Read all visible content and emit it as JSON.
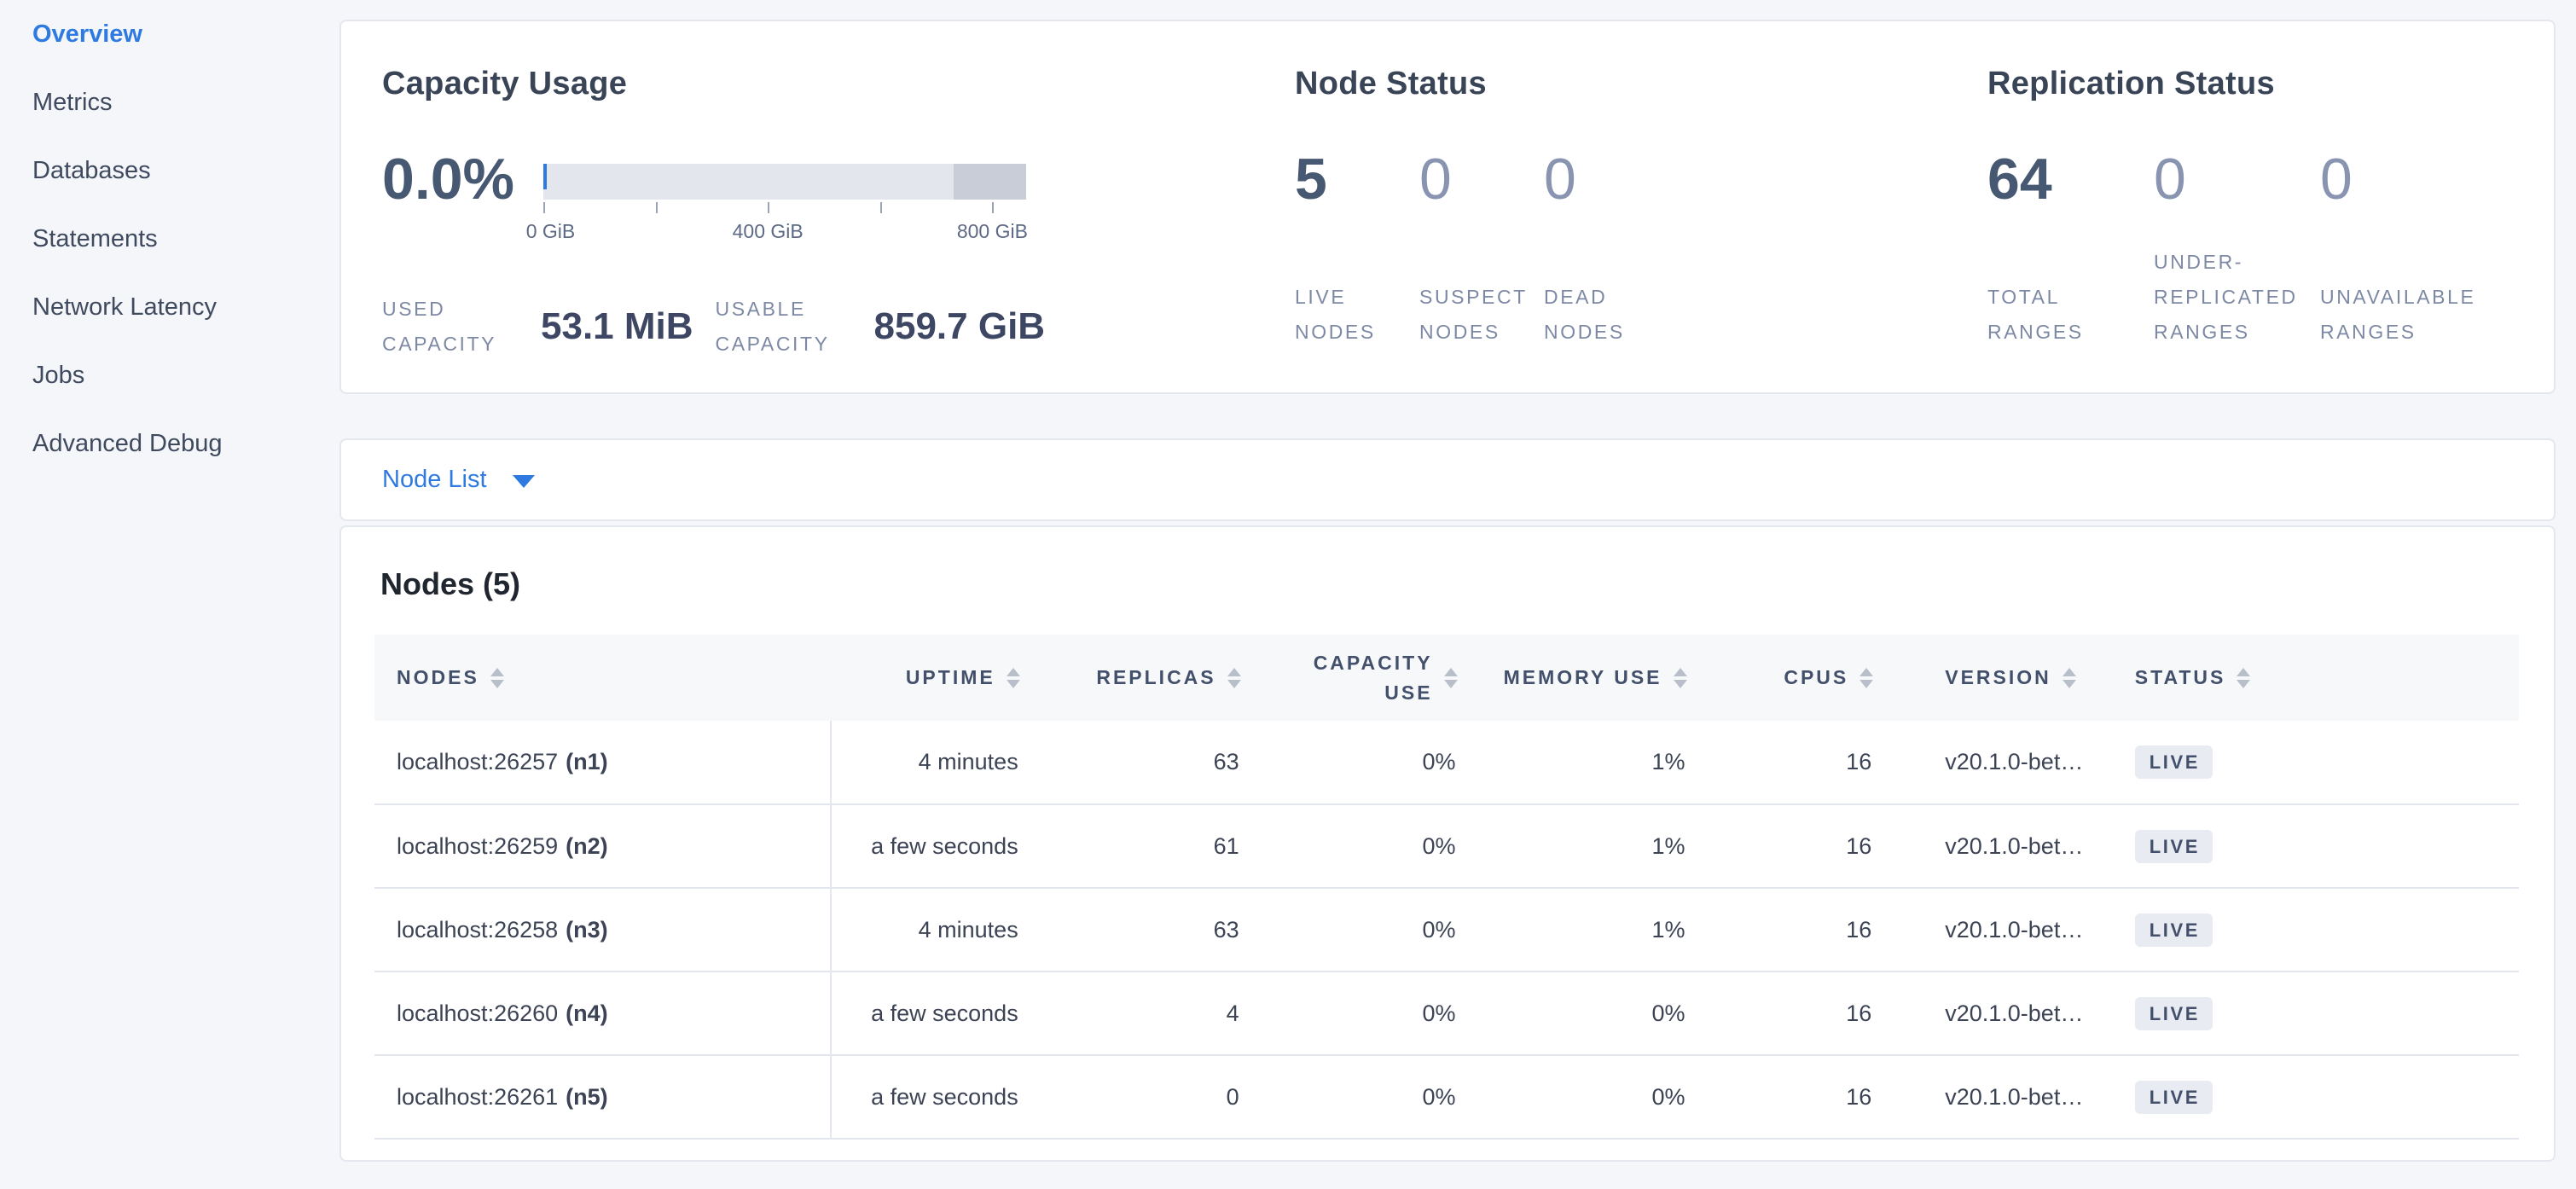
{
  "colors": {
    "accent_blue": "#2f7ae0",
    "page_background": "#f4f6fa",
    "card_background": "#ffffff",
    "bar_light": "#e3e6ed",
    "bar_dark": "#c9cdd8",
    "badge_background": "#e8ebf2",
    "text_dark": "#394457",
    "text_muted": "#7d89a4"
  },
  "sidebar": {
    "items": [
      {
        "label": "Overview",
        "active": true
      },
      {
        "label": "Metrics",
        "active": false
      },
      {
        "label": "Databases",
        "active": false
      },
      {
        "label": "Statements",
        "active": false
      },
      {
        "label": "Network Latency",
        "active": false
      },
      {
        "label": "Jobs",
        "active": false
      },
      {
        "label": "Advanced Debug",
        "active": false
      }
    ]
  },
  "summary": {
    "capacity": {
      "title": "Capacity Usage",
      "percent": "0.0%",
      "axis": {
        "t0": "0 GiB",
        "t400": "400 GiB",
        "t800": "800 GiB"
      },
      "stats": [
        {
          "label": "USED\nCAPACITY",
          "value": "53.1 MiB"
        },
        {
          "label": "USABLE\nCAPACITY",
          "value": "859.7 GiB"
        }
      ]
    },
    "node_status": {
      "title": "Node Status",
      "cols": [
        {
          "value": "5",
          "label": "LIVE\nNODES"
        },
        {
          "value": "0",
          "label": "SUSPECT\nNODES"
        },
        {
          "value": "0",
          "label": "DEAD\nNODES"
        }
      ]
    },
    "replication": {
      "title": "Replication Status",
      "cols": [
        {
          "value": "64",
          "label": "TOTAL\nRANGES"
        },
        {
          "value": "0",
          "label": "UNDER-\nREPLICATED\nRANGES"
        },
        {
          "value": "0",
          "label": "UNAVAILABLE\nRANGES"
        }
      ]
    }
  },
  "node_list": {
    "label": "Node List"
  },
  "nodes_table": {
    "title": "Nodes (5)",
    "columns": {
      "nodes": "NODES",
      "uptime": "UPTIME",
      "replicas": "REPLICAS",
      "capacity_use": "CAPACITY\nUSE",
      "memory_use": "MEMORY USE",
      "cpus": "CPUS",
      "version": "VERSION",
      "status": "STATUS"
    },
    "rows": [
      {
        "address": "localhost:26257",
        "id": "(n1)",
        "uptime": "4 minutes",
        "replicas": "63",
        "capacity_use": "0%",
        "memory_use": "1%",
        "cpus": "16",
        "version": "v20.1.0-bet…",
        "status": "LIVE"
      },
      {
        "address": "localhost:26259",
        "id": "(n2)",
        "uptime": "a few seconds",
        "replicas": "61",
        "capacity_use": "0%",
        "memory_use": "1%",
        "cpus": "16",
        "version": "v20.1.0-bet…",
        "status": "LIVE"
      },
      {
        "address": "localhost:26258",
        "id": "(n3)",
        "uptime": "4 minutes",
        "replicas": "63",
        "capacity_use": "0%",
        "memory_use": "1%",
        "cpus": "16",
        "version": "v20.1.0-bet…",
        "status": "LIVE"
      },
      {
        "address": "localhost:26260",
        "id": "(n4)",
        "uptime": "a few seconds",
        "replicas": "4",
        "capacity_use": "0%",
        "memory_use": "0%",
        "cpus": "16",
        "version": "v20.1.0-bet…",
        "status": "LIVE"
      },
      {
        "address": "localhost:26261",
        "id": "(n5)",
        "uptime": "a few seconds",
        "replicas": "0",
        "capacity_use": "0%",
        "memory_use": "0%",
        "cpus": "16",
        "version": "v20.1.0-bet…",
        "status": "LIVE"
      }
    ]
  }
}
